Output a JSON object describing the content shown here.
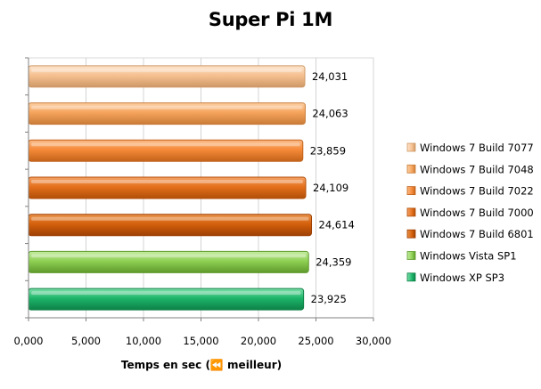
{
  "chart_data": {
    "type": "bar",
    "orientation": "horizontal",
    "title": "Super Pi 1M",
    "xlabel": "Temps en sec (⏪ meilleur)",
    "ylabel": "",
    "xlim": [
      0,
      30
    ],
    "x_ticks": [
      "0,000",
      "5,000",
      "10,000",
      "15,000",
      "20,000",
      "25,000",
      "30,000"
    ],
    "grid": true,
    "legend_position": "right",
    "series": [
      {
        "name": "Windows 7 Build 7077",
        "value": 24.031,
        "label": "24,031",
        "color": "#f6c090",
        "light": "#fde4cc",
        "dark": "#cf9866"
      },
      {
        "name": "Windows 7 Build 7048",
        "value": 24.063,
        "label": "24,063",
        "color": "#f6a45c",
        "light": "#fcd0a4",
        "dark": "#c97b37"
      },
      {
        "name": "Windows 7 Build 7022",
        "value": 23.859,
        "label": "23,859",
        "color": "#f58a38",
        "light": "#fbb984",
        "dark": "#c3621a"
      },
      {
        "name": "Windows 7 Build 7000",
        "value": 24.109,
        "label": "24,109",
        "color": "#e5701c",
        "light": "#f4a266",
        "dark": "#b04e08"
      },
      {
        "name": "Windows 7 Build 6801",
        "value": 24.614,
        "label": "24,614",
        "color": "#d4600c",
        "light": "#eb9248",
        "dark": "#9e4004"
      },
      {
        "name": "Windows Vista SP1",
        "value": 24.359,
        "label": "24,359",
        "color": "#8fd054",
        "light": "#c4eca0",
        "dark": "#5e9a2c"
      },
      {
        "name": "Windows XP SP3",
        "value": 23.925,
        "label": "23,925",
        "color": "#1db56a",
        "light": "#7ee0aa",
        "dark": "#0d8146"
      }
    ]
  }
}
